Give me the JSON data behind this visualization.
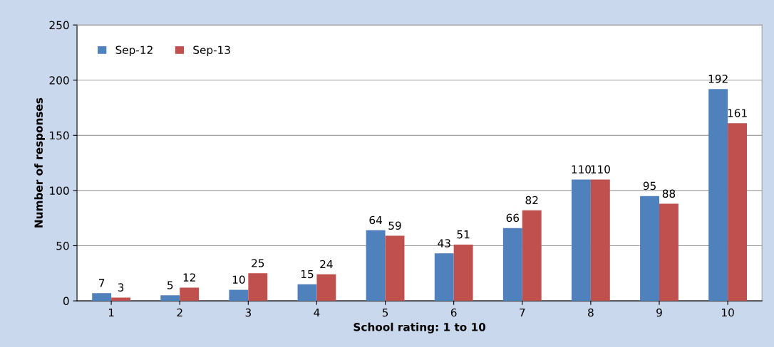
{
  "chart_data": {
    "type": "bar",
    "xlabel": "School rating: 1 to 10",
    "ylabel": "Number of responses",
    "categories": [
      "1",
      "2",
      "3",
      "4",
      "5",
      "6",
      "7",
      "8",
      "9",
      "10"
    ],
    "series": [
      {
        "name": "Sep-12",
        "color": "#4f81bd",
        "values": [
          7,
          5,
          10,
          15,
          64,
          43,
          66,
          110,
          95,
          192
        ]
      },
      {
        "name": "Sep-13",
        "color": "#c0504d",
        "values": [
          3,
          12,
          25,
          24,
          59,
          51,
          82,
          110,
          88,
          161
        ]
      }
    ],
    "ylim": [
      0,
      250
    ],
    "yticks": [
      0,
      50,
      100,
      150,
      200,
      250
    ],
    "grid": "y",
    "legend": "top left",
    "data_labels": true
  }
}
